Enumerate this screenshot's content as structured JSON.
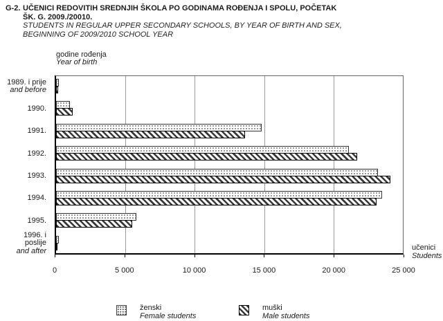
{
  "title": {
    "number": "G-2.",
    "line1": "UČENICI REDOVITIH SREDNJIH ŠKOLA PO GODINAMA ROĐENJA I SPOLU, POČETAK",
    "line2": "ŠK. G. 2009./20010.",
    "subtitle_line1": "STUDENTS IN REGULAR UPPER SECONDARY SCHOOLS, BY YEAR OF BIRTH AND SEX,",
    "subtitle_line2": "BEGINNING OF 2009/2010 SCHOOL YEAR"
  },
  "axis": {
    "y_label_hr": "godine rođenja",
    "y_label_en": "Year of birth",
    "x_label_hr": "učenici",
    "x_label_en": "Students"
  },
  "legend": [
    {
      "label_hr": "ženski",
      "label_en": "Female students",
      "pattern": "dots"
    },
    {
      "label_hr": "muški",
      "label_en": "Male students",
      "pattern": "diagonal-hatch"
    }
  ],
  "chart_data": {
    "type": "bar",
    "orientation": "horizontal",
    "title": "G-2. Učenici redovitih srednjih škola po godinama rođenja i spolu, početak šk. g. 2009./20010.",
    "xlabel": "učenici / Students",
    "ylabel": "godine rođenja / Year of birth",
    "categories": [
      {
        "hr": "1989. i prije",
        "en": "and before"
      },
      {
        "hr": "1990.",
        "en": ""
      },
      {
        "hr": "1991.",
        "en": ""
      },
      {
        "hr": "1992.",
        "en": ""
      },
      {
        "hr": "1993.",
        "en": ""
      },
      {
        "hr": "1994.",
        "en": ""
      },
      {
        "hr": "1995.",
        "en": ""
      },
      {
        "hr": "1996. i poslije",
        "en": "and after"
      }
    ],
    "series": [
      {
        "name": "ženski / Female students",
        "pattern": "dots",
        "values": [
          200,
          1000,
          14800,
          21100,
          23200,
          23500,
          5800,
          200
        ]
      },
      {
        "name": "muški / Male students",
        "pattern": "diagonal-hatch",
        "values": [
          150,
          1200,
          13600,
          21700,
          24100,
          23100,
          5500,
          100
        ]
      }
    ],
    "xlim": [
      0,
      25000
    ],
    "x_tick_values": [
      0,
      5000,
      10000,
      15000,
      20000,
      25000
    ],
    "x_tick_labels": [
      "0",
      "5 000",
      "10 000",
      "15 000",
      "20 000",
      "25 000"
    ],
    "grid": "vertical",
    "legend_position": "bottom"
  },
  "colors": {
    "hatch": "#383838",
    "stipple_dot": "#555555",
    "gridline": "#9a9a9a",
    "axis_line": "#000000",
    "text": "#1a1a1a"
  }
}
